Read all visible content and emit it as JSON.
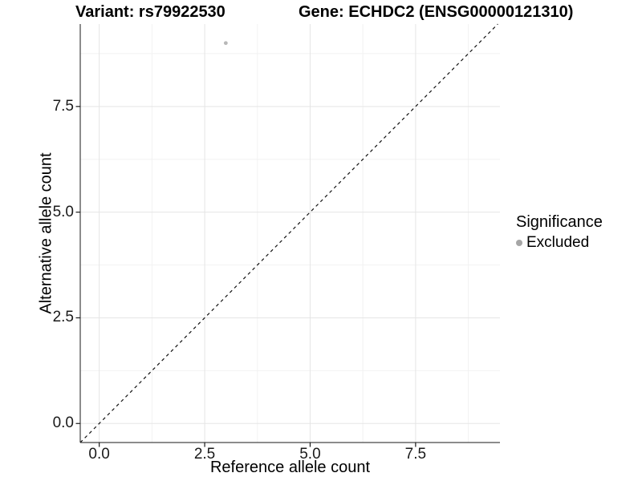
{
  "chart_data": {
    "type": "scatter",
    "titles": {
      "left": "Variant: rs79922530",
      "right": "Gene: ECHDC2 (ENSG00000121310)"
    },
    "xlabel": "Reference allele count",
    "ylabel": "Alternative allele count",
    "xlim": [
      -0.45,
      9.5
    ],
    "ylim": [
      -0.45,
      9.45
    ],
    "xticks": {
      "values": [
        0,
        2.5,
        5,
        7.5
      ],
      "labels": [
        "0.0",
        "2.5",
        "5.0",
        "7.5"
      ]
    },
    "yticks": {
      "values": [
        0,
        2.5,
        5,
        7.5
      ],
      "labels": [
        "0.0",
        "2.5",
        "5.0",
        "7.5"
      ]
    },
    "xminor": [
      1.25,
      3.75,
      6.25,
      8.75
    ],
    "yminor": [
      1.25,
      3.75,
      6.25,
      8.75
    ],
    "grid": {
      "major_color": "#e5e5e5",
      "minor_color": "#f2f2f2",
      "background": "#ffffff"
    },
    "axis_color": "#1a1a1a",
    "reference_line": {
      "slope": 1,
      "intercept": 0,
      "linetype": "dashed",
      "color": "#111111"
    },
    "series": [
      {
        "name": "Excluded",
        "color": "#b8b8b8",
        "points": [
          {
            "x": 3,
            "y": 9
          }
        ]
      }
    ],
    "legend": {
      "title": "Significance",
      "position": "right",
      "items": [
        {
          "label": "Excluded",
          "color": "#a6a6a6"
        }
      ]
    }
  }
}
